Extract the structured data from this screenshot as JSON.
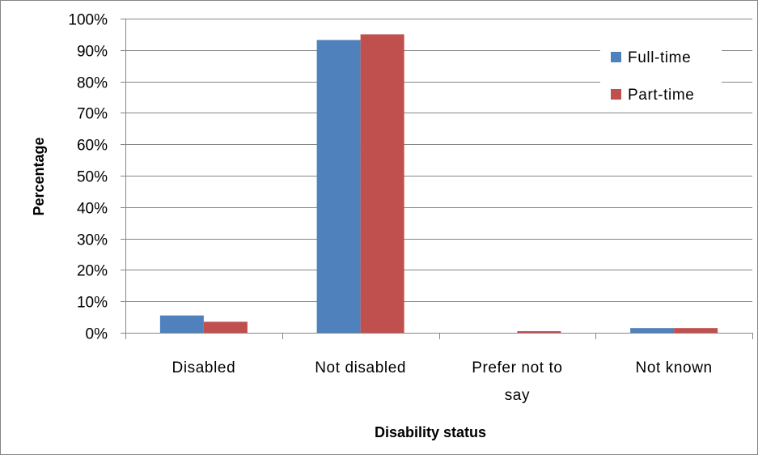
{
  "chart_data": {
    "type": "bar",
    "title": "",
    "xlabel": "Disability status",
    "ylabel": "Percentage",
    "categories": [
      [
        "Disabled"
      ],
      [
        "Not disabled"
      ],
      [
        "Prefer not to",
        "say"
      ],
      [
        "Not known"
      ]
    ],
    "series": [
      {
        "name": "Full-time",
        "color": "#4f81bd",
        "values": [
          5.5,
          93.2,
          0.0,
          1.5
        ]
      },
      {
        "name": "Part-time",
        "color": "#c0504d",
        "values": [
          3.5,
          95.0,
          0.5,
          1.5
        ]
      }
    ],
    "ylim": [
      0,
      100
    ],
    "ytick_step": 10,
    "ytick_labels": [
      "0%",
      "10%",
      "20%",
      "30%",
      "40%",
      "50%",
      "60%",
      "70%",
      "80%",
      "90%",
      "100%"
    ],
    "grid": true,
    "legend_position": "top-right",
    "gridline_color": "#868686",
    "frame_color": "#868686"
  }
}
